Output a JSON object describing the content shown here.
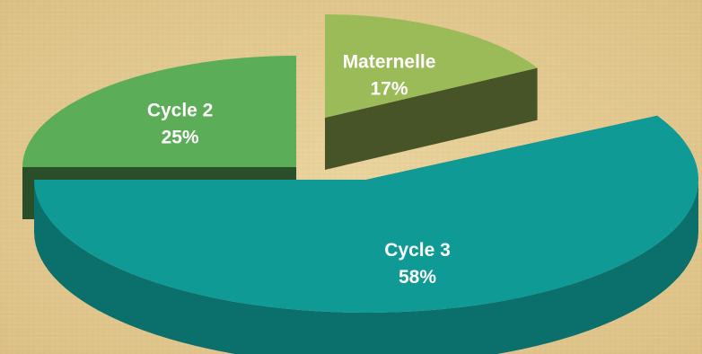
{
  "chart_data": {
    "type": "pie",
    "style": "3d-exploded",
    "labels": [
      "Cycle 3",
      "Cycle 2",
      "Maternelle"
    ],
    "values": [
      58,
      25,
      17
    ],
    "value_labels": [
      "58%",
      "25%",
      "17%"
    ],
    "colors": {
      "Cycle 3": "#0f9a96",
      "Cycle 2": "#5cad58",
      "Maternelle": "#9bbb59"
    },
    "title": "",
    "legend": "none"
  },
  "theme": {
    "background": "#e6cf97",
    "label_color": "#ffffff"
  }
}
